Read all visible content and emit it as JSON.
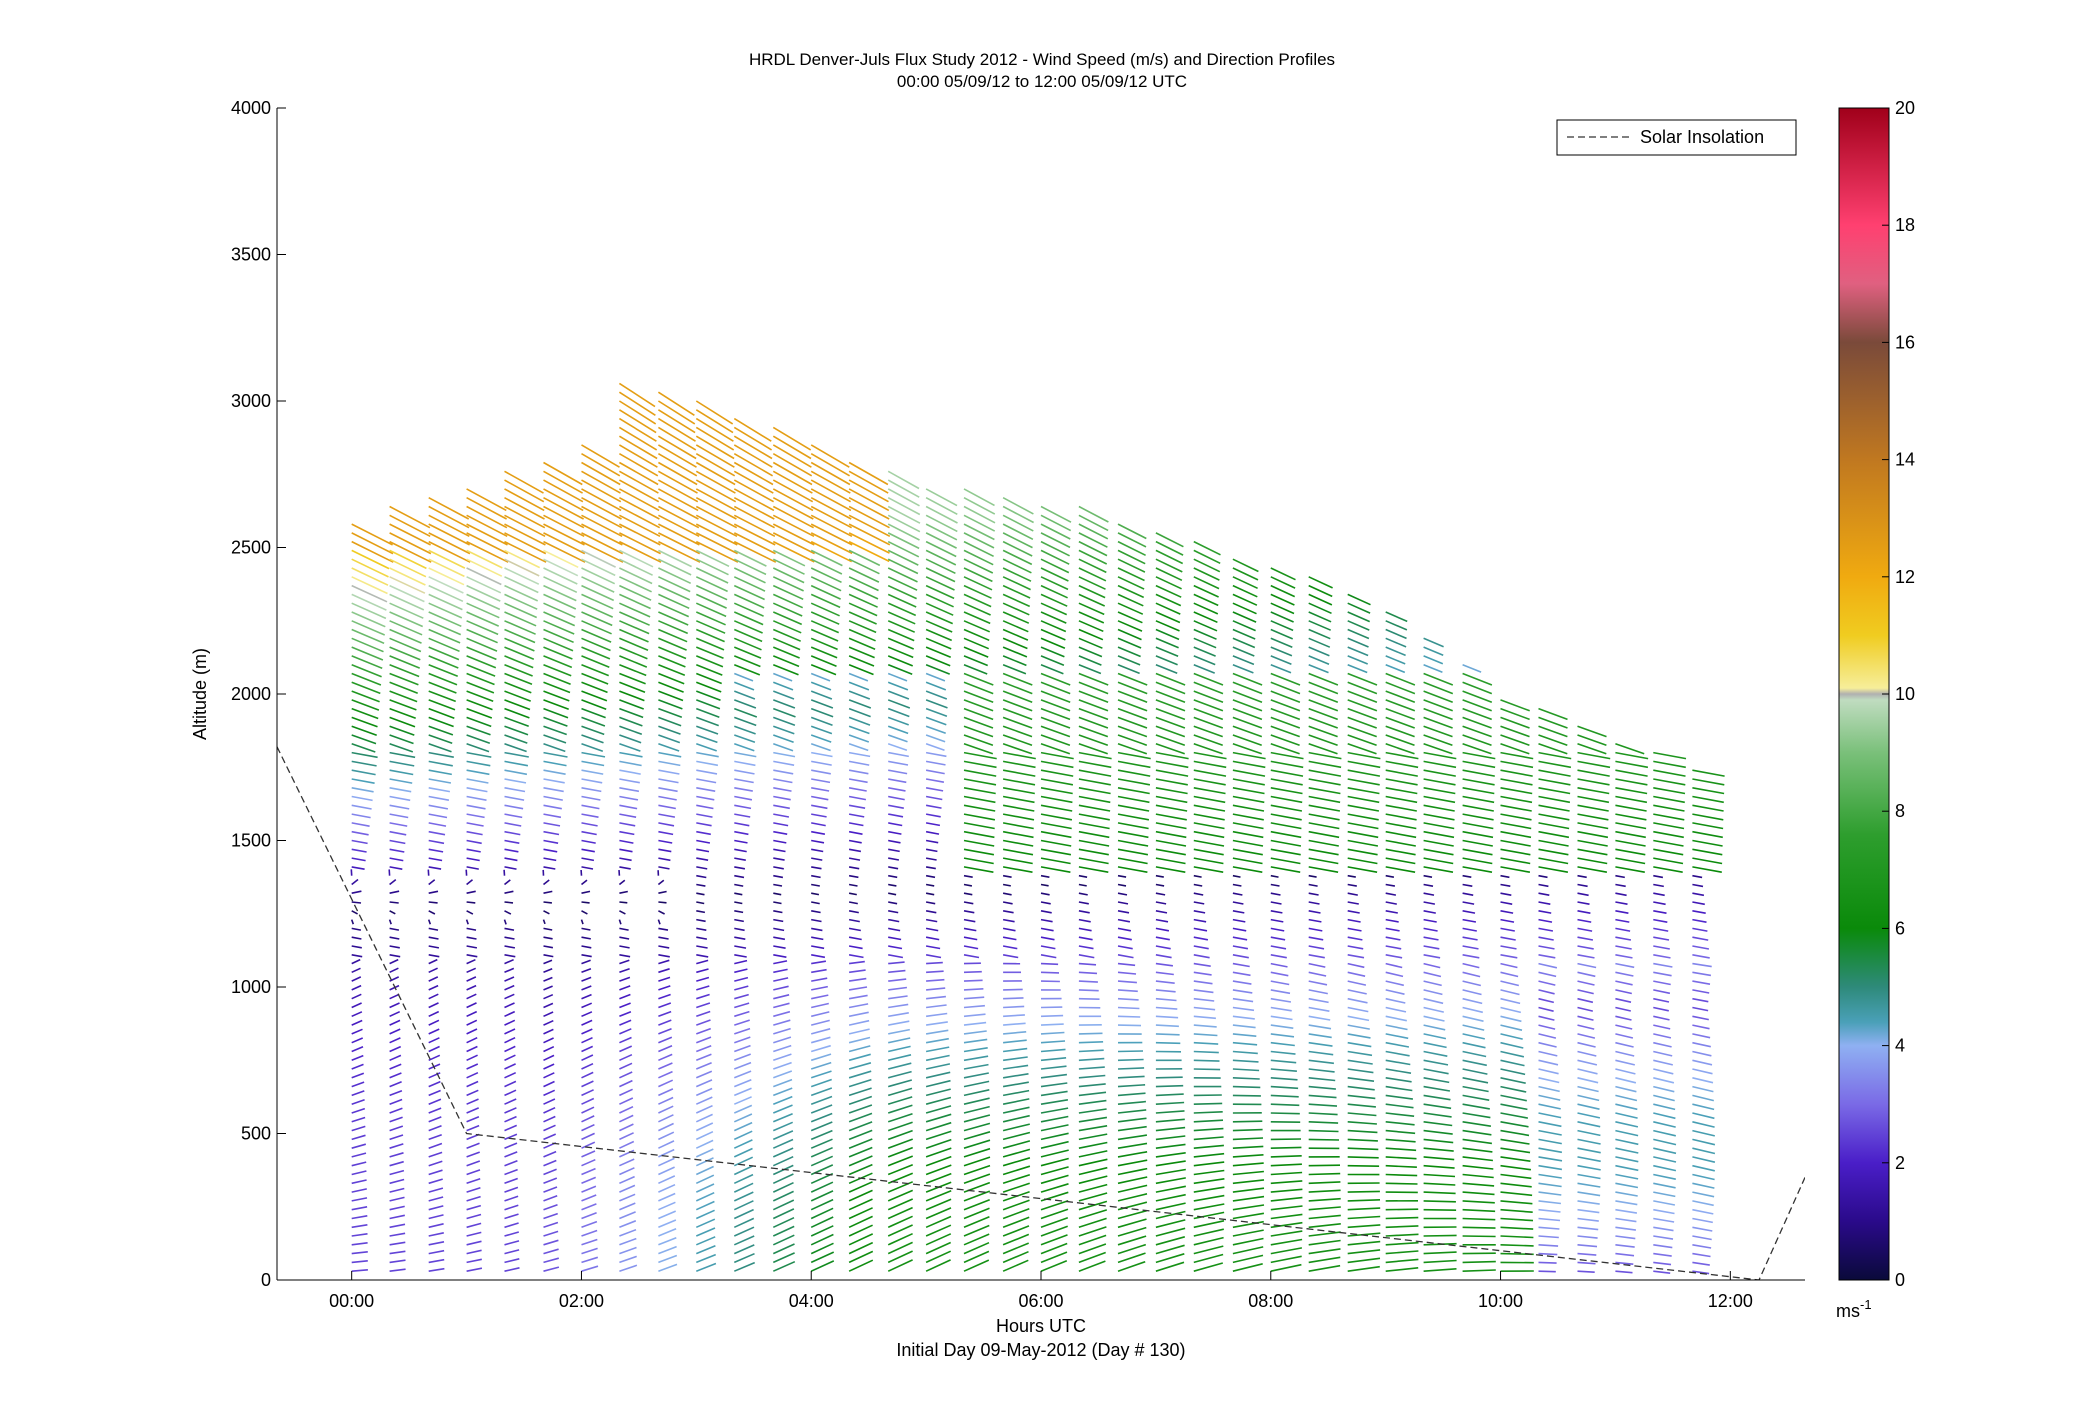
{
  "chart_data": {
    "type": "quiver",
    "title": "HRDL Denver-Juls Flux Study 2012 - Wind Speed (m/s) and Direction Profiles",
    "subtitle": "00:00 05/09/12 to 12:00 05/09/12  UTC",
    "xlabel": "Hours UTC",
    "xlabel2": "Initial Day 09-May-2012 (Day # 130)",
    "ylabel": "Altitude (m)",
    "xlim": [
      -0.65,
      12.65
    ],
    "ylim": [
      0,
      4000
    ],
    "x_ticks": [
      0,
      2,
      4,
      6,
      8,
      10,
      12
    ],
    "x_tick_labels": [
      "00:00",
      "02:00",
      "04:00",
      "06:00",
      "08:00",
      "10:00",
      "12:00"
    ],
    "y_ticks": [
      0,
      500,
      1000,
      1500,
      2000,
      2500,
      3000,
      3500,
      4000
    ],
    "y_tick_labels": [
      "0",
      "500",
      "1000",
      "1500",
      "2000",
      "2500",
      "3000",
      "3500",
      "4000"
    ],
    "colorbar": {
      "min": 0,
      "max": 20,
      "ticks": [
        0,
        2,
        4,
        6,
        8,
        10,
        12,
        14,
        16,
        18,
        20
      ],
      "tick_labels": [
        "0",
        "2",
        "4",
        "6",
        "8",
        "10",
        "12",
        "14",
        "16",
        "18",
        "20"
      ],
      "unit_label": "ms",
      "unit_exponent": "-1"
    },
    "legend": {
      "position": "top-right",
      "entries": [
        "Solar Insolation"
      ]
    },
    "solar_insolation": {
      "x": [
        -0.65,
        1.0,
        12.25,
        12.65
      ],
      "y": [
        1820,
        500,
        0,
        350
      ]
    },
    "profiles_hours": [
      0.0,
      0.33,
      0.67,
      1.0,
      1.33,
      1.67,
      2.0,
      2.33,
      2.67,
      3.0,
      3.33,
      3.67,
      4.0,
      4.33,
      4.67,
      5.0,
      5.33,
      5.67,
      6.0,
      6.33,
      6.67,
      7.0,
      7.33,
      7.67,
      8.0,
      8.33,
      8.67,
      9.0,
      9.33,
      9.67,
      10.0,
      10.33,
      10.67,
      11.0,
      11.33,
      11.67
    ],
    "profile_tops_m": [
      2600,
      2640,
      2680,
      2720,
      2760,
      2800,
      2860,
      3080,
      3050,
      3000,
      2960,
      2920,
      2850,
      2800,
      2760,
      2720,
      2700,
      2680,
      2660,
      2640,
      2600,
      2560,
      2520,
      2480,
      2450,
      2400,
      2350,
      2300,
      2200,
      2100,
      2000,
      1950,
      1900,
      1850,
      1800,
      1750
    ],
    "barb_levels_m": {
      "start": 30,
      "step": 30
    },
    "speed_profile_description": {
      "near_surface_early_ms": 2.5,
      "near_surface_late_ms": 6.5,
      "minimum_layer_m": 1250,
      "minimum_layer_speed_ms": 0.5,
      "upper_jet_speed_ms": 12
    }
  }
}
